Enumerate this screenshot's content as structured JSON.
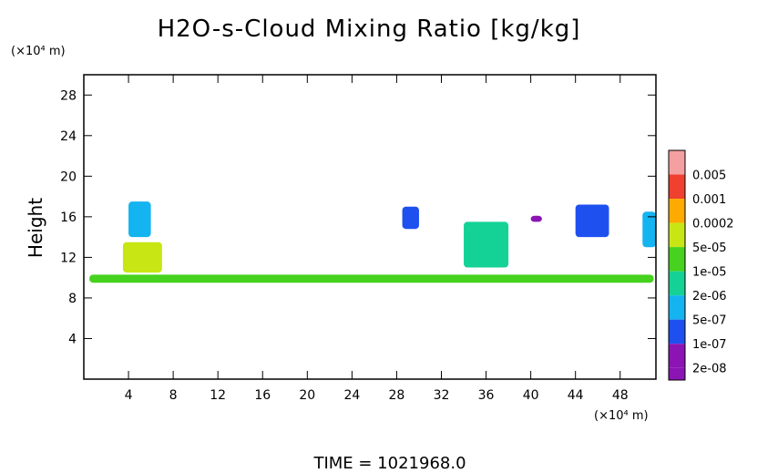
{
  "chart_data": {
    "type": "heatmap",
    "title": "H2O-s-Cloud Mixing Ratio [kg/kg]",
    "ylabel": "Height",
    "x_unit": "(×10⁴ m)",
    "y_unit": "(×10⁴ m)",
    "footer": "TIME = 1021968.0",
    "xlim": [
      0,
      51.2
    ],
    "ylim": [
      0,
      30
    ],
    "x_ticks": [
      4,
      8,
      12,
      16,
      20,
      24,
      28,
      32,
      36,
      40,
      44,
      48
    ],
    "y_ticks": [
      4,
      8,
      12,
      16,
      20,
      24,
      28
    ],
    "colorbar": [
      {
        "label": "0.005",
        "color": "#f4a0a0"
      },
      {
        "label": "0.001",
        "color": "#f04030"
      },
      {
        "label": "0.0002",
        "color": "#ffaa00"
      },
      {
        "label": "5e-05",
        "color": "#c8e614"
      },
      {
        "label": "1e-05",
        "color": "#46d21e"
      },
      {
        "label": "2e-06",
        "color": "#14d296"
      },
      {
        "label": "5e-07",
        "color": "#14b4f0"
      },
      {
        "label": "1e-07",
        "color": "#1e50f0"
      },
      {
        "label": "2e-08",
        "color": "#8c14b4"
      }
    ],
    "colorbar_bottom_color": "#8c14b4",
    "cloud_regions": [
      {
        "x": [
          0.5,
          51
        ],
        "y": [
          9.5,
          10.3
        ],
        "level": "1e-05"
      },
      {
        "x": [
          3.5,
          7
        ],
        "y": [
          10.5,
          13.5
        ],
        "level": "5e-05"
      },
      {
        "x": [
          4,
          6
        ],
        "y": [
          14,
          17.5
        ],
        "level": "5e-07"
      },
      {
        "x": [
          28.5,
          30
        ],
        "y": [
          14.8,
          17
        ],
        "level": "1e-07"
      },
      {
        "x": [
          34,
          38
        ],
        "y": [
          11,
          15.5
        ],
        "level": "2e-06"
      },
      {
        "x": [
          44,
          47
        ],
        "y": [
          14,
          17.2
        ],
        "level": "1e-07"
      },
      {
        "x": [
          40,
          41
        ],
        "y": [
          15.5,
          16.1
        ],
        "level": "2e-08"
      },
      {
        "x": [
          50,
          51.2
        ],
        "y": [
          13,
          16.5
        ],
        "level": "5e-07"
      }
    ]
  }
}
